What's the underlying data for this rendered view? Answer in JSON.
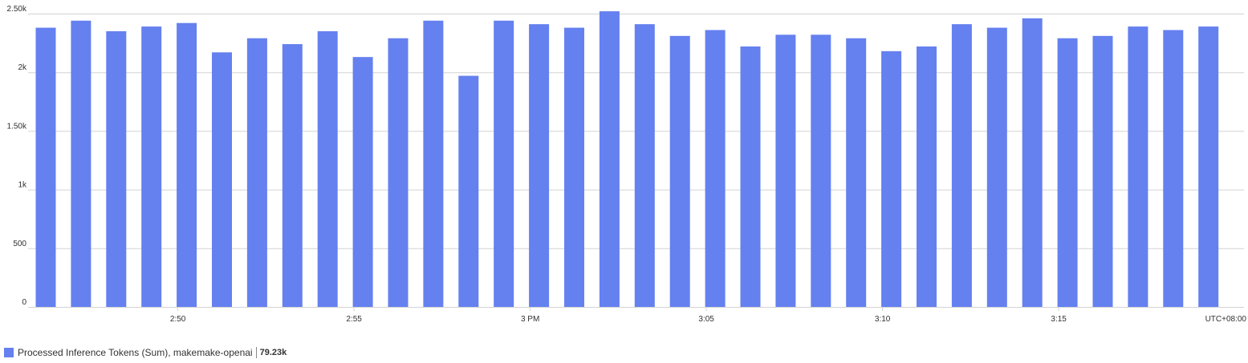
{
  "colors": {
    "bar": "#6580ef",
    "gridline": "#d3d3d3",
    "axis_text": "#323130"
  },
  "legend": {
    "label": "Processed Inference Tokens (Sum), makemake-openai",
    "total": "79.23k"
  },
  "chart_data": {
    "type": "bar",
    "title": "",
    "xlabel": "",
    "ylabel": "",
    "ylim": [
      0,
      2500
    ],
    "grid": true,
    "legend_position": "bottom-left",
    "timezone_label": "UTC+08:00",
    "y_ticks": [
      {
        "value": 0,
        "label": "0"
      },
      {
        "value": 500,
        "label": "500"
      },
      {
        "value": 1000,
        "label": "1k"
      },
      {
        "value": 1500,
        "label": "1.50k"
      },
      {
        "value": 2000,
        "label": "2k"
      },
      {
        "value": 2500,
        "label": "2.50k"
      }
    ],
    "x_ticks": [
      {
        "index": 3.75,
        "label": "2:50"
      },
      {
        "index": 8.75,
        "label": "2:55"
      },
      {
        "index": 13.75,
        "label": "3 PM"
      },
      {
        "index": 18.75,
        "label": "3:05"
      },
      {
        "index": 23.75,
        "label": "3:10"
      },
      {
        "index": 28.75,
        "label": "3:15"
      }
    ],
    "series": [
      {
        "name": "Processed Inference Tokens (Sum), makemake-openai",
        "values": [
          2380,
          2440,
          2350,
          2390,
          2420,
          2170,
          2290,
          2240,
          2350,
          2130,
          2290,
          2440,
          1970,
          2440,
          2410,
          2380,
          2520,
          2410,
          2310,
          2360,
          2220,
          2320,
          2320,
          2290,
          2180,
          2220,
          2410,
          2380,
          2460,
          2290,
          2310,
          2390,
          2360,
          2390
        ]
      }
    ]
  }
}
